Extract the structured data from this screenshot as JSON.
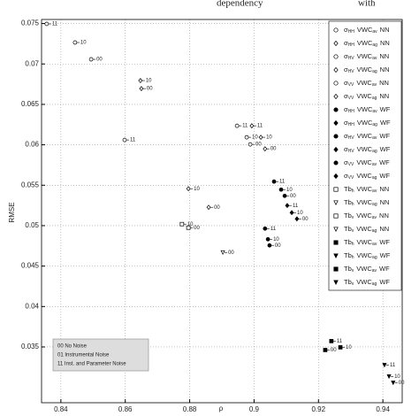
{
  "chart_data": {
    "type": "scatter",
    "header_fragments": [
      "dependency",
      "with"
    ],
    "xlabel": "ρ",
    "ylabel": "RMSE",
    "xlim": [
      0.834,
      0.946
    ],
    "ylim": [
      0.0281,
      0.0755
    ],
    "xticks": [
      0.84,
      0.86,
      0.88,
      0.9,
      0.92,
      0.94
    ],
    "yticks": [
      0.035,
      0.04,
      0.045,
      0.05,
      0.055,
      0.06,
      0.065,
      0.07,
      0.075
    ],
    "grid": true,
    "points": {
      "x": [
        0.8356,
        0.8444,
        0.8494,
        0.8647,
        0.865,
        0.8598,
        0.8796,
        0.8859,
        0.8776,
        0.8796,
        0.8903,
        0.8947,
        0.8993,
        0.8977,
        0.9021,
        0.8988,
        0.9034,
        0.9062,
        0.9084,
        0.9095,
        0.9103,
        0.9117,
        0.9133,
        0.9034,
        0.9043,
        0.9048,
        0.924,
        0.9268,
        0.9221,
        0.9405,
        0.9419,
        0.9432
      ],
      "y": [
        0.07495,
        0.07265,
        0.07057,
        0.06794,
        0.06695,
        0.0606,
        0.05457,
        0.05227,
        0.05019,
        0.04975,
        0.04668,
        0.06235,
        0.06235,
        0.06093,
        0.06093,
        0.06005,
        0.0595,
        0.05545,
        0.05446,
        0.05369,
        0.05249,
        0.05161,
        0.05084,
        0.04964,
        0.04832,
        0.04756,
        0.03572,
        0.03495,
        0.03462,
        0.03276,
        0.03134,
        0.03057
      ],
      "labels": [
        "11",
        "10",
        "00",
        "10",
        "00",
        "11",
        "10",
        "00",
        "10",
        "00",
        "00",
        "11",
        "11",
        "10",
        "10",
        "00",
        "00",
        "11",
        "10",
        "00",
        "11",
        "10",
        "00",
        "11",
        "10",
        "00",
        "11",
        "10",
        "00",
        "11",
        "10",
        "00"
      ],
      "markers": [
        "o",
        "o",
        "o",
        "d",
        "d",
        "o",
        "d",
        "d",
        "s",
        "s",
        "v",
        "o",
        "d",
        "o",
        "d",
        "o",
        "d",
        "O",
        "O",
        "O",
        "D",
        "D",
        "D",
        "O",
        "O",
        "O",
        "S",
        "S",
        "S",
        "V",
        "V",
        "V"
      ]
    },
    "legend": [
      {
        "sym": "σ",
        "pol": "HH",
        "var": "VWC",
        "agg": "av",
        "method": "NN",
        "marker": "o"
      },
      {
        "sym": "σ",
        "pol": "HH",
        "var": "VWC",
        "agg": "ag",
        "method": "NN",
        "marker": "d"
      },
      {
        "sym": "σ",
        "pol": "HV",
        "var": "VWC",
        "agg": "av",
        "method": "NN",
        "marker": "o"
      },
      {
        "sym": "σ",
        "pol": "HV",
        "var": "VWC",
        "agg": "ag",
        "method": "NN",
        "marker": "d"
      },
      {
        "sym": "σ",
        "pol": "VV",
        "var": "VWC",
        "agg": "av",
        "method": "NN",
        "marker": "o"
      },
      {
        "sym": "σ",
        "pol": "VV",
        "var": "VWC",
        "agg": "ag",
        "method": "NN",
        "marker": "d"
      },
      {
        "sym": "σ",
        "pol": "HH",
        "var": "VWC",
        "agg": "av",
        "method": "WF",
        "marker": "O"
      },
      {
        "sym": "σ",
        "pol": "HH",
        "var": "VWC",
        "agg": "ag",
        "method": "WF",
        "marker": "D"
      },
      {
        "sym": "σ",
        "pol": "HV",
        "var": "VWC",
        "agg": "av",
        "method": "WF",
        "marker": "O"
      },
      {
        "sym": "σ",
        "pol": "HV",
        "var": "VWC",
        "agg": "ag",
        "method": "WF",
        "marker": "D"
      },
      {
        "sym": "σ",
        "pol": "VV",
        "var": "VWC",
        "agg": "av",
        "method": "WF",
        "marker": "O"
      },
      {
        "sym": "σ",
        "pol": "VV",
        "var": "VWC",
        "agg": "ag",
        "method": "WF",
        "marker": "D"
      },
      {
        "sym": "Tb",
        "pol": "h",
        "var": "VWC",
        "agg": "av",
        "method": "NN",
        "marker": "s"
      },
      {
        "sym": "Tb",
        "pol": "h",
        "var": "VWC",
        "agg": "ag",
        "method": "NN",
        "marker": "v"
      },
      {
        "sym": "Tb",
        "pol": "v",
        "var": "VWC",
        "agg": "av",
        "method": "NN",
        "marker": "s"
      },
      {
        "sym": "Tb",
        "pol": "v",
        "var": "VWC",
        "agg": "ag",
        "method": "NN",
        "marker": "v"
      },
      {
        "sym": "Tb",
        "pol": "h",
        "var": "VWC",
        "agg": "av",
        "method": "WF",
        "marker": "S"
      },
      {
        "sym": "Tb",
        "pol": "h",
        "var": "VWC",
        "agg": "ag",
        "method": "WF",
        "marker": "V"
      },
      {
        "sym": "Tb",
        "pol": "v",
        "var": "VWC",
        "agg": "av",
        "method": "WF",
        "marker": "S"
      },
      {
        "sym": "Tb",
        "pol": "v",
        "var": "VWC",
        "agg": "ag",
        "method": "WF",
        "marker": "V"
      }
    ],
    "noise_key": [
      "00 No Noise",
      "01 Instrumental Noise",
      "11 Inst. and Parameter Noise"
    ]
  }
}
